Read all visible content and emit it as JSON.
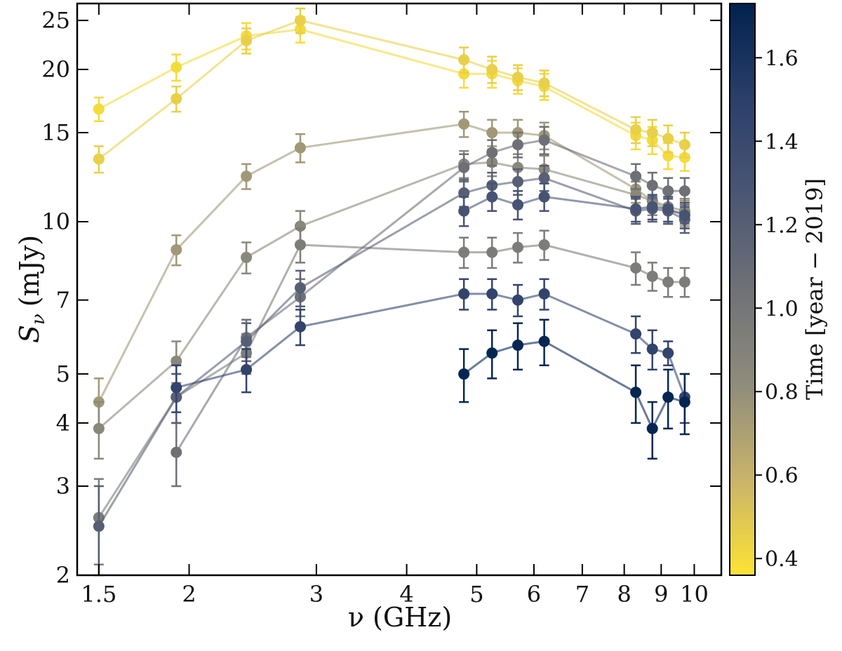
{
  "chart_data": {
    "type": "scatter",
    "xlabel": "ν (GHz)",
    "ylabel_main": "S",
    "ylabel_sub": "ν",
    "ylabel_unit": "(mJy)",
    "xscale": "log",
    "yscale": "log",
    "xlim": [
      1.4,
      10.9
    ],
    "ylim": [
      2,
      27
    ],
    "x_ticks": [
      1.5,
      2,
      3,
      4,
      5,
      6,
      7,
      8,
      9,
      10
    ],
    "x_tick_labels": [
      "1.5",
      "2",
      "3",
      "4",
      "5",
      "6",
      "7",
      "8",
      "9",
      "10"
    ],
    "y_ticks": [
      2,
      3,
      4,
      5,
      7,
      10,
      15,
      20,
      25
    ],
    "y_tick_labels": [
      "2",
      "3",
      "4",
      "5",
      "7",
      "10",
      "15",
      "20",
      "25"
    ],
    "colorbar": {
      "label": "Time [year − 2019]",
      "range": [
        0.36,
        1.73
      ],
      "ticks": [
        0.4,
        0.6,
        0.8,
        1.0,
        1.2,
        1.4,
        1.6
      ],
      "tick_labels": [
        "0.4",
        "0.6",
        "0.8",
        "1.0",
        "1.2",
        "1.4",
        "1.6"
      ],
      "cmap": [
        "#fde334",
        "#c9b46a",
        "#8f8c7c",
        "#6f7176",
        "#4a5674",
        "#2b3f6a",
        "#00224e"
      ]
    },
    "series": [
      {
        "time": 0.4,
        "points": [
          [
            1.5,
            16.7,
            0.9
          ],
          [
            1.92,
            20.2,
            1.2
          ],
          [
            2.4,
            23.3,
            1.4
          ],
          [
            2.85,
            24.0,
            1.4
          ],
          [
            4.8,
            19.6,
            1.2
          ],
          [
            5.25,
            19.6,
            1.2
          ],
          [
            5.7,
            19.0,
            1.1
          ],
          [
            6.2,
            18.5,
            1.1
          ],
          [
            8.3,
            14.8,
            0.9
          ],
          [
            8.75,
            14.5,
            0.9
          ],
          [
            9.2,
            13.5,
            0.8
          ],
          [
            9.7,
            13.4,
            0.8
          ]
        ]
      },
      {
        "time": 0.45,
        "points": [
          [
            1.5,
            13.3,
            0.8
          ],
          [
            1.92,
            17.5,
            1.0
          ],
          [
            2.4,
            22.8,
            1.3
          ],
          [
            2.85,
            25.0,
            1.4
          ],
          [
            4.8,
            20.9,
            1.2
          ],
          [
            5.25,
            20.0,
            1.2
          ],
          [
            5.7,
            19.3,
            1.1
          ],
          [
            6.2,
            18.8,
            1.1
          ],
          [
            8.3,
            15.2,
            0.9
          ],
          [
            8.75,
            15.0,
            0.9
          ],
          [
            9.2,
            14.6,
            0.9
          ],
          [
            9.7,
            14.2,
            0.8
          ]
        ]
      },
      {
        "time": 0.75,
        "points": [
          [
            1.5,
            4.4,
            0.5
          ],
          [
            1.92,
            8.8,
            0.6
          ],
          [
            2.4,
            12.3,
            0.7
          ],
          [
            2.85,
            14.0,
            0.9
          ],
          [
            4.8,
            15.6,
            0.9
          ],
          [
            5.25,
            15.0,
            0.9
          ],
          [
            5.7,
            15.0,
            0.9
          ],
          [
            6.2,
            14.8,
            0.9
          ],
          [
            8.3,
            11.6,
            0.7
          ],
          [
            8.75,
            11.0,
            0.7
          ],
          [
            9.2,
            10.5,
            0.6
          ],
          [
            9.7,
            10.4,
            0.6
          ]
        ]
      },
      {
        "time": 0.85,
        "points": [
          [
            1.5,
            3.9,
            0.5
          ],
          [
            1.92,
            5.3,
            0.5
          ],
          [
            2.4,
            8.5,
            0.6
          ],
          [
            2.85,
            9.8,
            0.7
          ],
          [
            4.8,
            13.0,
            0.8
          ],
          [
            5.25,
            13.1,
            0.8
          ],
          [
            5.7,
            12.8,
            0.8
          ],
          [
            6.2,
            12.7,
            0.8
          ],
          [
            8.3,
            11.3,
            0.7
          ],
          [
            8.75,
            11.0,
            0.7
          ],
          [
            9.2,
            10.7,
            0.7
          ],
          [
            9.7,
            10.5,
            0.6
          ]
        ]
      },
      {
        "time": 0.95,
        "points": [
          [
            1.5,
            2.6,
            0.5
          ],
          [
            1.92,
            4.5,
            0.5
          ],
          [
            2.4,
            5.5,
            0.5
          ],
          [
            2.85,
            9.0,
            0.7
          ],
          [
            4.8,
            8.7,
            0.6
          ],
          [
            5.25,
            8.7,
            0.6
          ],
          [
            5.7,
            8.9,
            0.6
          ],
          [
            6.2,
            9.0,
            0.6
          ],
          [
            8.3,
            8.1,
            0.6
          ],
          [
            8.75,
            7.8,
            0.5
          ],
          [
            9.2,
            7.6,
            0.5
          ],
          [
            9.7,
            7.6,
            0.5
          ]
        ]
      },
      {
        "time": 1.05,
        "points": [
          [
            1.92,
            3.5,
            0.5
          ],
          [
            2.4,
            5.9,
            0.5
          ],
          [
            2.85,
            7.1,
            0.6
          ],
          [
            4.8,
            12.8,
            0.8
          ],
          [
            5.25,
            13.7,
            0.8
          ],
          [
            5.7,
            14.2,
            0.8
          ],
          [
            6.2,
            14.5,
            0.9
          ],
          [
            8.3,
            12.3,
            0.7
          ],
          [
            8.75,
            11.8,
            0.7
          ],
          [
            9.2,
            11.5,
            0.7
          ],
          [
            9.7,
            11.5,
            0.7
          ]
        ]
      },
      {
        "time": 1.2,
        "points": [
          [
            1.5,
            2.5,
            0.5
          ],
          [
            1.92,
            4.5,
            0.5
          ],
          [
            2.4,
            5.8,
            0.5
          ],
          [
            2.85,
            7.4,
            0.6
          ],
          [
            4.8,
            11.4,
            0.7
          ],
          [
            5.25,
            11.8,
            0.7
          ],
          [
            5.7,
            12.0,
            0.7
          ],
          [
            6.2,
            12.2,
            0.7
          ],
          [
            8.3,
            10.5,
            0.6
          ],
          [
            8.75,
            10.6,
            0.6
          ],
          [
            9.2,
            10.5,
            0.6
          ],
          [
            9.7,
            10.1,
            0.6
          ]
        ]
      },
      {
        "time": 1.3,
        "points": [
          [
            4.8,
            10.5,
            0.7
          ],
          [
            5.25,
            11.2,
            0.7
          ],
          [
            5.7,
            10.8,
            0.7
          ],
          [
            6.2,
            11.2,
            0.7
          ],
          [
            8.3,
            10.6,
            0.6
          ],
          [
            8.75,
            10.7,
            0.6
          ],
          [
            9.2,
            10.6,
            0.6
          ],
          [
            9.7,
            10.3,
            0.6
          ]
        ]
      },
      {
        "time": 1.45,
        "points": [
          [
            1.92,
            4.7,
            0.5
          ],
          [
            2.4,
            5.1,
            0.5
          ],
          [
            2.85,
            6.2,
            0.5
          ],
          [
            4.8,
            7.2,
            0.5
          ],
          [
            5.25,
            7.2,
            0.5
          ],
          [
            5.7,
            7.0,
            0.5
          ],
          [
            6.2,
            7.2,
            0.5
          ],
          [
            8.3,
            6.0,
            0.5
          ],
          [
            8.75,
            5.6,
            0.5
          ],
          [
            9.2,
            5.5,
            0.3
          ],
          [
            9.7,
            4.5,
            0.5
          ]
        ]
      },
      {
        "time": 1.7,
        "points": [
          [
            4.8,
            5.0,
            0.6
          ],
          [
            5.25,
            5.5,
            0.6
          ],
          [
            5.7,
            5.7,
            0.6
          ],
          [
            6.2,
            5.8,
            0.6
          ],
          [
            8.3,
            4.6,
            0.6
          ],
          [
            8.75,
            3.9,
            0.5
          ],
          [
            9.2,
            4.5,
            0.6
          ],
          [
            9.7,
            4.4,
            0.6
          ]
        ]
      }
    ]
  }
}
